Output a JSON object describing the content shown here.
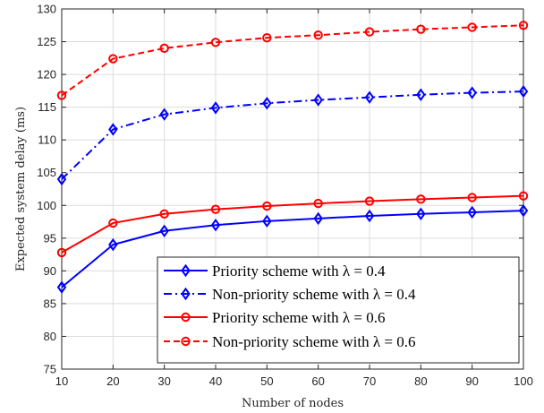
{
  "chart_data": {
    "type": "line",
    "xlabel": "Number of nodes",
    "ylabel": "Expected system delay (ms)",
    "x": [
      10,
      20,
      30,
      40,
      50,
      60,
      70,
      80,
      90,
      100
    ],
    "xlim": [
      10,
      100
    ],
    "ylim": [
      75,
      130
    ],
    "xticks": [
      10,
      20,
      30,
      40,
      50,
      60,
      70,
      80,
      90,
      100
    ],
    "yticks": [
      75,
      80,
      85,
      90,
      95,
      100,
      105,
      110,
      115,
      120,
      125,
      130
    ],
    "grid": true,
    "legend_position": "bottom-right",
    "series": [
      {
        "name": "Priority scheme with λ = 0.4",
        "color": "#0000ff",
        "line_style": "solid",
        "marker": "diamond",
        "values": [
          87.5,
          94.0,
          96.1,
          97.0,
          97.6,
          98.0,
          98.4,
          98.7,
          98.95,
          99.2
        ]
      },
      {
        "name": "Non-priority scheme with λ = 0.4",
        "color": "#0000ff",
        "line_style": "dashdot",
        "marker": "diamond",
        "values": [
          104.0,
          111.6,
          113.9,
          114.9,
          115.6,
          116.1,
          116.5,
          116.9,
          117.2,
          117.4
        ]
      },
      {
        "name": "Priority scheme with λ = 0.6",
        "color": "#ff0000",
        "line_style": "solid",
        "marker": "circle",
        "values": [
          92.8,
          97.3,
          98.7,
          99.4,
          99.9,
          100.3,
          100.65,
          100.95,
          101.2,
          101.45
        ]
      },
      {
        "name": "Non-priority scheme with λ = 0.6",
        "color": "#ff0000",
        "line_style": "dashed",
        "marker": "circle",
        "values": [
          116.8,
          122.4,
          124.0,
          124.9,
          125.6,
          126.0,
          126.5,
          126.9,
          127.2,
          127.5
        ]
      }
    ]
  }
}
